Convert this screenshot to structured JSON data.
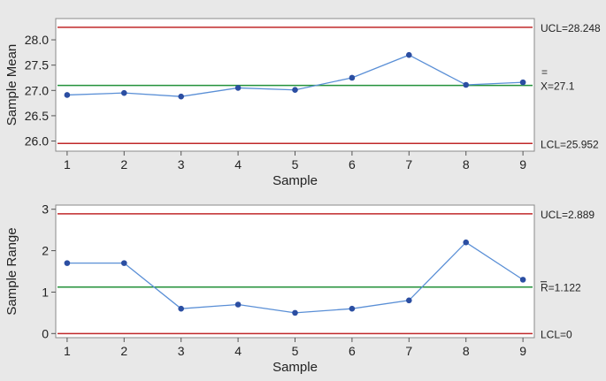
{
  "chart_data": [
    {
      "type": "line",
      "xlabel": "Sample",
      "ylabel": "Sample Mean",
      "x": [
        1,
        2,
        3,
        4,
        5,
        6,
        7,
        8,
        9
      ],
      "y": [
        26.91,
        26.95,
        26.88,
        27.05,
        27.01,
        27.25,
        27.7,
        27.11,
        27.16
      ],
      "yticks": [
        26.0,
        26.5,
        27.0,
        27.5,
        28.0
      ],
      "ytick_labels": [
        "26.0",
        "26.5",
        "27.0",
        "27.5",
        "28.0"
      ],
      "xticks": [
        1,
        2,
        3,
        4,
        5,
        6,
        7,
        8,
        9
      ],
      "xlim": [
        0.8,
        9.2
      ],
      "ylim": [
        25.8,
        28.42
      ],
      "grid": false,
      "ucl": 28.248,
      "center": 27.1,
      "lcl": 25.952,
      "ucl_label": "UCL=28.248",
      "center_label_bar": "=",
      "center_label": "X=27.1",
      "lcl_label": "LCL=25.952",
      "colors": {
        "data": "#2b4ea2",
        "data_line": "#5a8fd6",
        "control_limit": "#c0282a",
        "center_line": "#23913a"
      }
    },
    {
      "type": "line",
      "xlabel": "Sample",
      "ylabel": "Sample Range",
      "x": [
        1,
        2,
        3,
        4,
        5,
        6,
        7,
        8,
        9
      ],
      "y": [
        1.7,
        1.7,
        0.6,
        0.7,
        0.5,
        0.6,
        0.8,
        2.2,
        1.3
      ],
      "yticks": [
        0,
        1,
        2,
        3
      ],
      "ytick_labels": [
        "0",
        "1",
        "2",
        "3"
      ],
      "xticks": [
        1,
        2,
        3,
        4,
        5,
        6,
        7,
        8,
        9
      ],
      "xlim": [
        0.8,
        9.2
      ],
      "ylim": [
        -0.1,
        3.1
      ],
      "grid": false,
      "ucl": 2.889,
      "center": 1.122,
      "lcl": 0,
      "ucl_label": "UCL=2.889",
      "center_label_bar": "",
      "center_label": "R=1.122",
      "lcl_label": "LCL=0",
      "colors": {
        "data": "#2b4ea2",
        "data_line": "#5a8fd6",
        "control_limit": "#c0282a",
        "center_line": "#23913a"
      }
    }
  ]
}
